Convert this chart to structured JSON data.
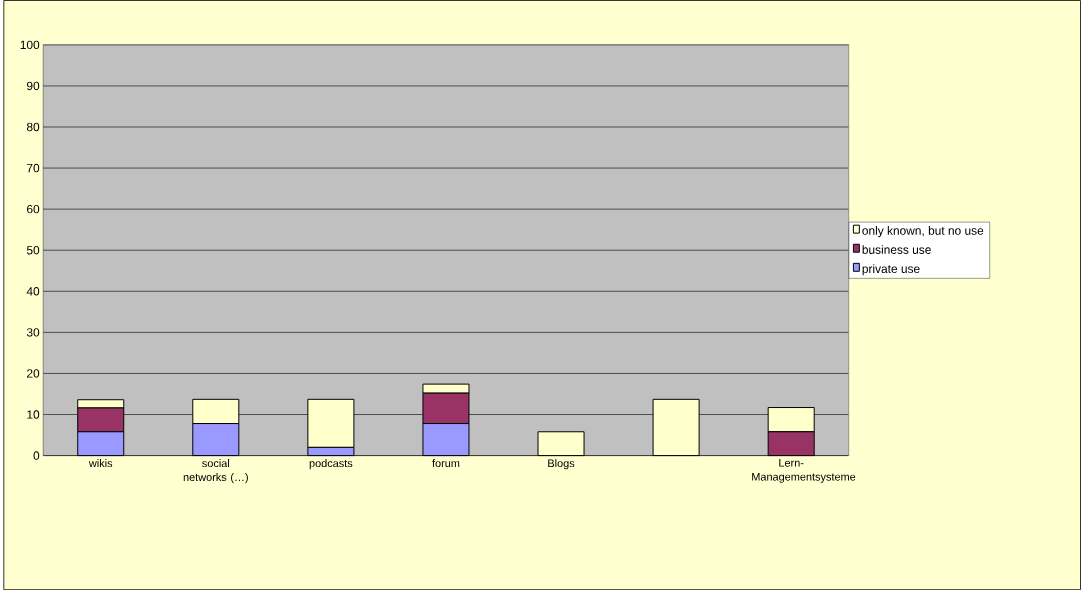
{
  "chart_data": {
    "type": "bar",
    "stacked": true,
    "categories": [
      "wikis",
      "social networks (…)",
      "podcasts",
      "forum",
      "Blogs",
      null,
      "Lern-Managementsysteme"
    ],
    "series": [
      {
        "name": "private use",
        "color": "#9999ff",
        "values": [
          5.8,
          7.8,
          2.0,
          7.8,
          0,
          0,
          0
        ]
      },
      {
        "name": "business use",
        "color": "#993366",
        "values": [
          5.8,
          0,
          0,
          7.4,
          0,
          0,
          5.8
        ]
      },
      {
        "name": "only known, but no use",
        "color": "#ffffcc",
        "values": [
          2.0,
          5.9,
          11.7,
          2.2,
          5.8,
          13.7,
          5.9
        ]
      }
    ],
    "ylim": [
      0,
      100
    ],
    "yticks": [
      0,
      10,
      20,
      30,
      40,
      50,
      60,
      70,
      80,
      90,
      100
    ],
    "grid": "y",
    "legend": "right"
  }
}
